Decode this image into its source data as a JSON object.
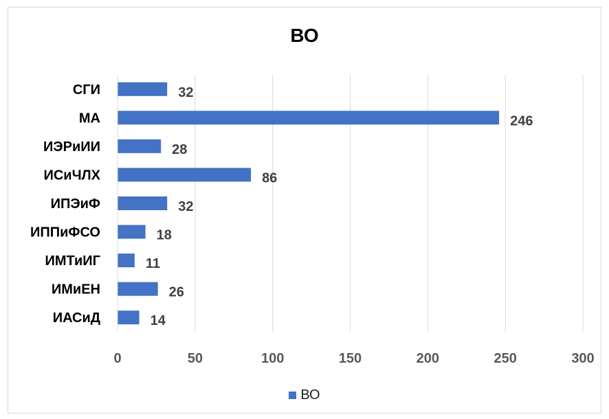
{
  "chart_data": {
    "type": "bar",
    "orientation": "horizontal",
    "title": "ВО",
    "categories": [
      "ИАСиД",
      "ИМиЕН",
      "ИМТиИГ",
      "ИППиФСО",
      "ИПЭиФ",
      "ИСиЧЛХ",
      "ИЭРиИИ",
      "МА",
      "СГИ"
    ],
    "series": [
      {
        "name": "ВО",
        "values": [
          14,
          26,
          11,
          18,
          32,
          86,
          28,
          246,
          32
        ],
        "color": "#4472c4"
      }
    ],
    "xlim": [
      0,
      300
    ],
    "xticks": [
      0,
      50,
      100,
      150,
      200,
      250,
      300
    ],
    "grid": true,
    "legend_position": "bottom",
    "data_labels": true
  }
}
